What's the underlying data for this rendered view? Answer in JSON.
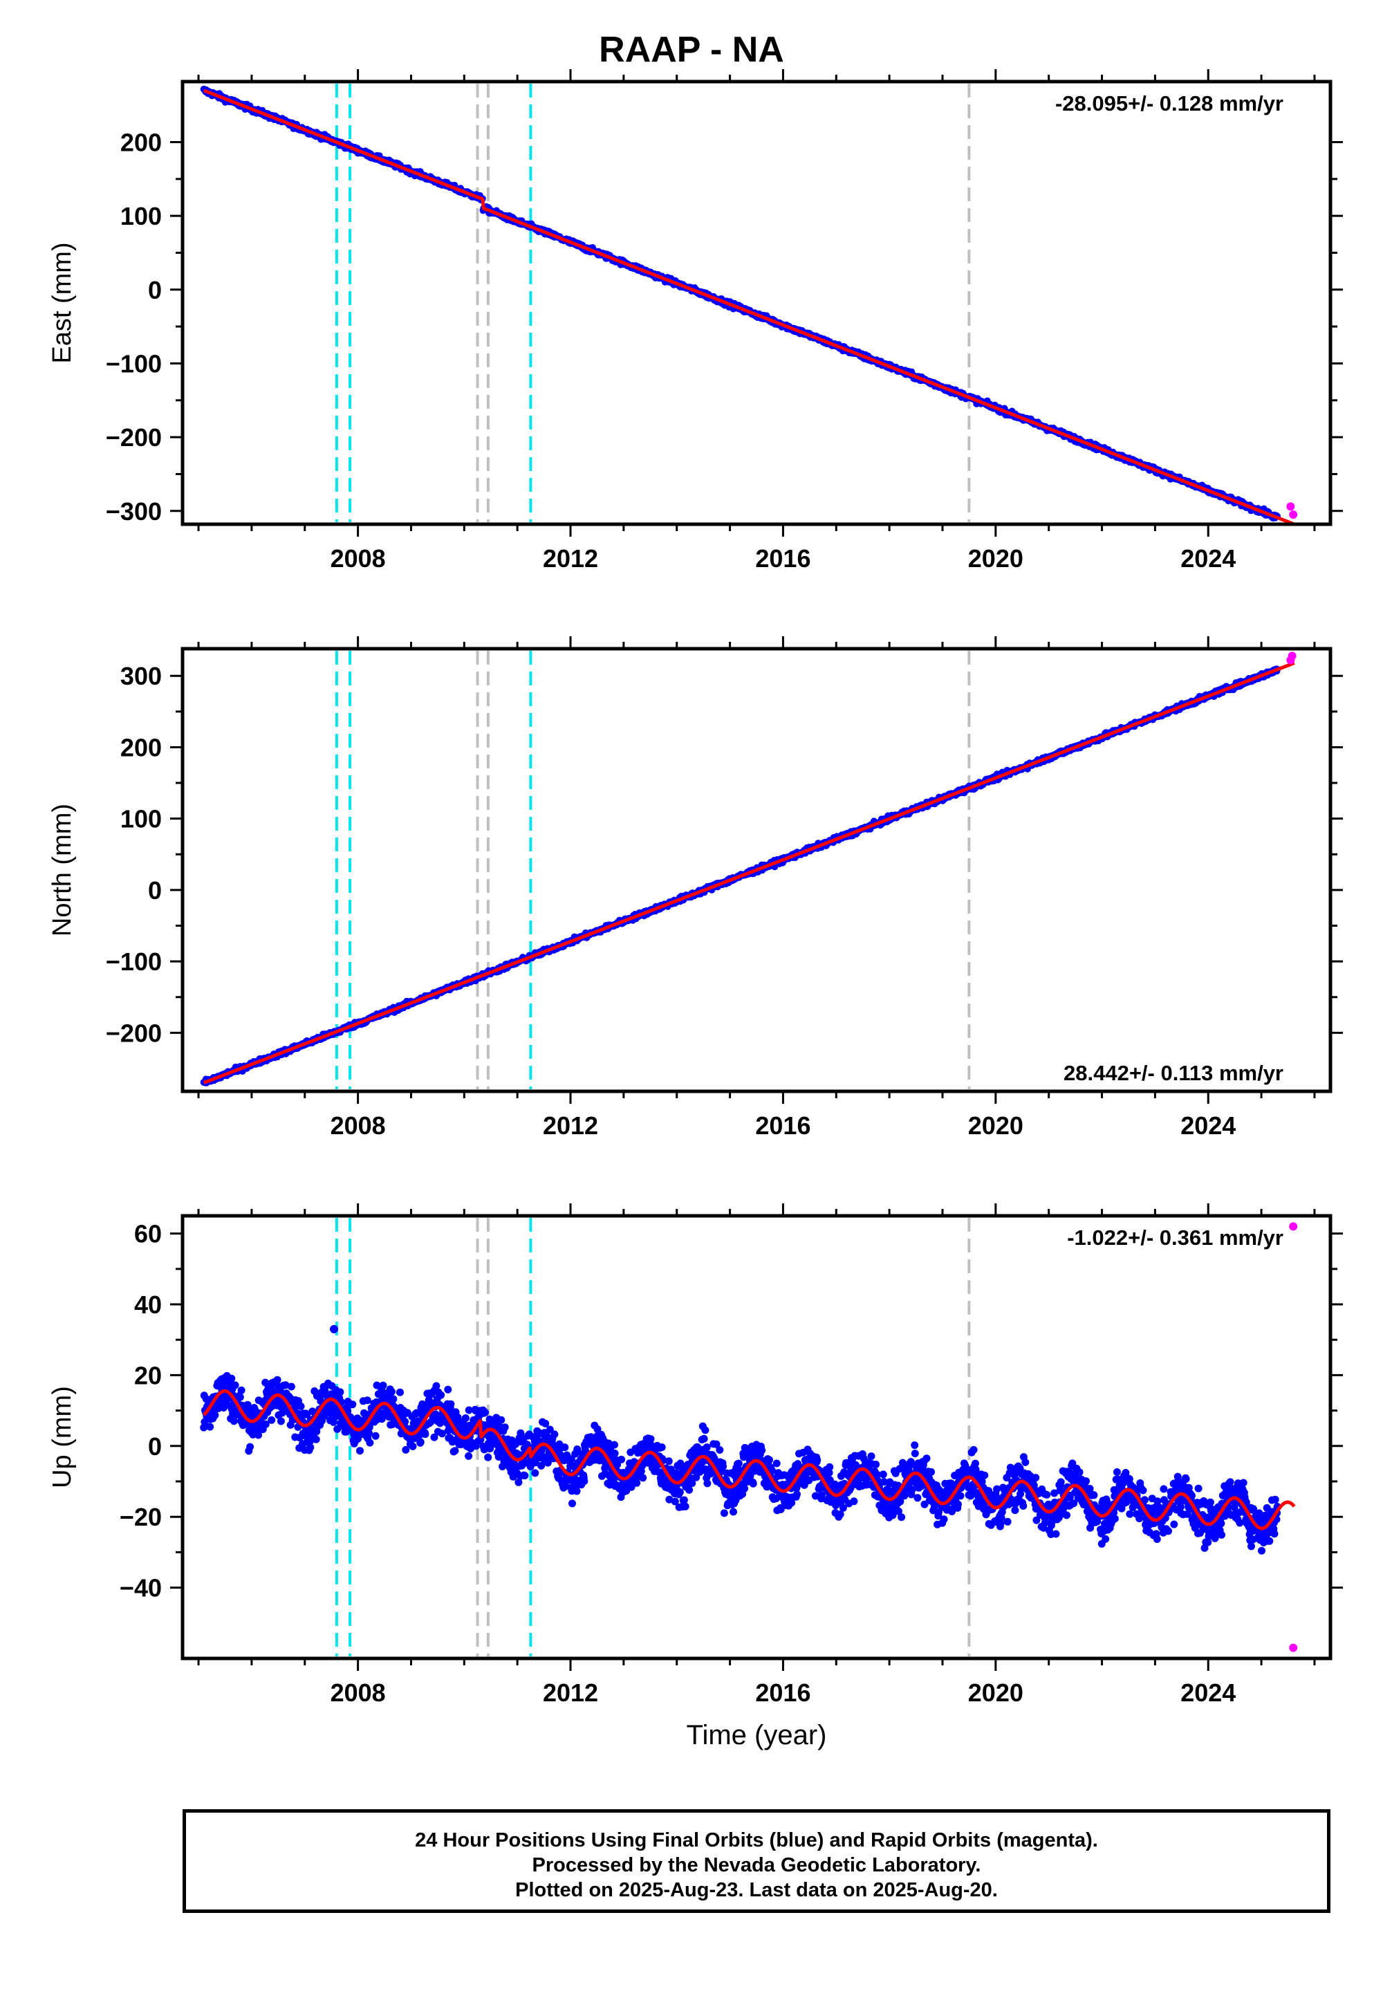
{
  "page": {
    "title": "RAAP - NA"
  },
  "colors": {
    "final_orbits": "#0000ff",
    "rapid_orbits": "#ff00ff",
    "model": "#ff0000",
    "equipment_change": "#00e5ee",
    "other_event": "#c0c0c0"
  },
  "events": {
    "cyan": [
      2007.6,
      2007.85,
      2011.25
    ],
    "gray": [
      2010.25,
      2010.45,
      2019.5
    ]
  },
  "chart_data": [
    {
      "type": "scatter",
      "panel": "east",
      "ylabel": "East (mm)",
      "xlabel": "",
      "xlim": [
        2004.7,
        2026.3
      ],
      "ylim": [
        -318,
        282
      ],
      "yticks": [
        -300,
        -200,
        -100,
        0,
        100,
        200
      ],
      "xticks": [
        2008,
        2012,
        2016,
        2020,
        2024
      ],
      "rate_text": "-28.095+/- 0.128 mm/yr",
      "rate_position": "top-right",
      "series": [
        {
          "name": "Final orbits",
          "x_start": 2005.1,
          "x_end": 2025.3,
          "y_start": 270,
          "y_end": -294,
          "scatter": 2.5
        },
        {
          "name": "Rapid orbits",
          "x": [
            2025.55,
            2025.6
          ],
          "y": [
            -294,
            -305
          ]
        },
        {
          "name": "Model",
          "x_start": 2005.1,
          "x_end": 2025.62,
          "y_start": 270,
          "y_end": -306,
          "steps": [
            [
              2010.35,
              -12
            ]
          ]
        }
      ]
    },
    {
      "type": "scatter",
      "panel": "north",
      "ylabel": "North (mm)",
      "xlabel": "",
      "xlim": [
        2004.7,
        2026.3
      ],
      "ylim": [
        -282,
        338
      ],
      "yticks": [
        -200,
        -100,
        0,
        100,
        200,
        300
      ],
      "xticks": [
        2008,
        2012,
        2016,
        2020,
        2024
      ],
      "rate_text": "28.442+/- 0.113 mm/yr",
      "rate_position": "bottom-right",
      "series": [
        {
          "name": "Final orbits",
          "x_start": 2005.1,
          "x_end": 2025.3,
          "y_start": -270,
          "y_end": 303,
          "scatter": 2.5
        },
        {
          "name": "Rapid orbits",
          "x": [
            2025.55,
            2025.58
          ],
          "y": [
            322,
            328
          ]
        },
        {
          "name": "Model",
          "x_start": 2005.1,
          "x_end": 2025.62,
          "y_start": -270,
          "y_end": 318
        }
      ]
    },
    {
      "type": "scatter",
      "panel": "up",
      "ylabel": "Up (mm)",
      "xlabel": "Time (year)",
      "xlim": [
        2004.7,
        2026.3
      ],
      "ylim": [
        -60,
        65
      ],
      "yticks": [
        -40,
        -20,
        0,
        20,
        40,
        60
      ],
      "xticks": [
        2008,
        2012,
        2016,
        2020,
        2024
      ],
      "rate_text": "-1.022+/- 0.361 mm/yr",
      "rate_position": "top-right",
      "series": [
        {
          "name": "Final orbits",
          "x_start": 2005.1,
          "x_end": 2025.3,
          "y_start": 12,
          "y_end": -12,
          "amplitude": 4,
          "scatter": 4.5,
          "outliers": [
            [
              2007.55,
              33
            ]
          ]
        },
        {
          "name": "Rapid orbits",
          "x": [
            2025.6,
            2025.6
          ],
          "y": [
            62,
            -57
          ]
        },
        {
          "name": "Model",
          "x_start": 2005.1,
          "x_end": 2025.62,
          "y_start": 12,
          "y_end": -12,
          "amplitude": 4,
          "steps": [
            [
              2010.3,
              -5
            ],
            [
              2011.25,
              -3
            ]
          ]
        }
      ]
    }
  ],
  "footer": {
    "line1": "24 Hour Positions Using Final Orbits (blue) and Rapid Orbits (magenta).",
    "line2": "Processed by the Nevada Geodetic Laboratory.",
    "line3": "Plotted on 2025-Aug-23. Last data on 2025-Aug-20."
  }
}
